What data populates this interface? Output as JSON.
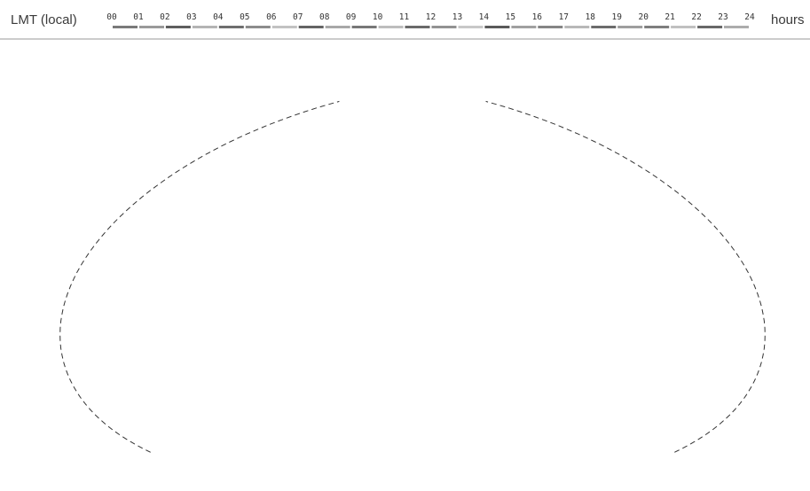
{
  "legend": {
    "left_label": "LMT (local)",
    "right_label": "hours",
    "ticks": [
      "00",
      "01",
      "02",
      "03",
      "04",
      "05",
      "06",
      "07",
      "08",
      "09",
      "10",
      "11",
      "12",
      "13",
      "14",
      "15",
      "16",
      "17",
      "18",
      "19",
      "20",
      "21",
      "22",
      "23",
      "24"
    ]
  }
}
